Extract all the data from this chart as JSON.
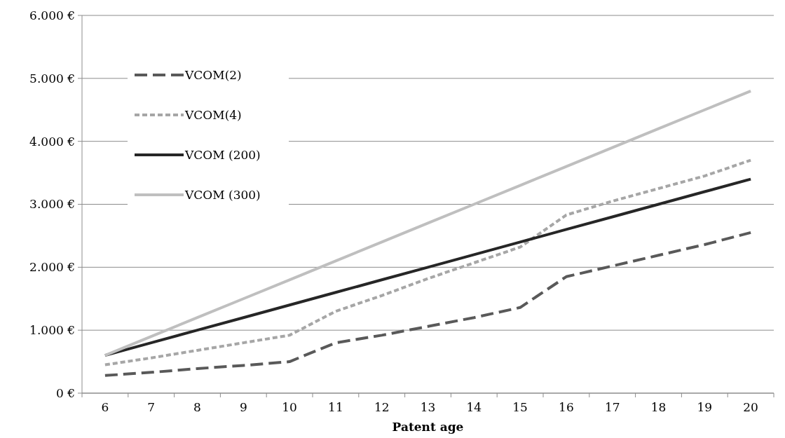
{
  "chart_data": {
    "type": "line",
    "xlabel": "Patent age",
    "categories": [
      "6",
      "7",
      "8",
      "9",
      "10",
      "11",
      "12",
      "13",
      "14",
      "15",
      "16",
      "17",
      "18",
      "19",
      "20"
    ],
    "series": [
      {
        "name": "VCOM(2)",
        "color": "#595959",
        "line_style": "dashed",
        "values": [
          280,
          330,
          390,
          440,
          500,
          800,
          920,
          1060,
          1200,
          1360,
          1850,
          2020,
          2190,
          2360,
          2550
        ]
      },
      {
        "name": "VCOM(4)",
        "color": "#a6a6a6",
        "line_style": "dotted",
        "values": [
          450,
          560,
          680,
          800,
          920,
          1300,
          1550,
          1820,
          2070,
          2320,
          2830,
          3050,
          3250,
          3450,
          3700
        ]
      },
      {
        "name": "VCOM (200)",
        "color": "#262626",
        "line_style": "solid",
        "values": [
          600,
          800,
          1000,
          1200,
          1400,
          1600,
          1800,
          2000,
          2200,
          2400,
          2600,
          2800,
          3000,
          3200,
          3400
        ]
      },
      {
        "name": "VCOM (300)",
        "color": "#bfbfbf",
        "line_style": "solid",
        "values": [
          600,
          900,
          1200,
          1500,
          1800,
          2100,
          2400,
          2700,
          3000,
          3300,
          3600,
          3900,
          4200,
          4500,
          4800
        ]
      }
    ],
    "ylim": [
      0,
      6000
    ],
    "yticks": [
      {
        "value": 0,
        "label": "0 €"
      },
      {
        "value": 1000,
        "label": "1.000 €"
      },
      {
        "value": 2000,
        "label": "2.000 €"
      },
      {
        "value": 3000,
        "label": "3.000 €"
      },
      {
        "value": 4000,
        "label": "4.000 €"
      },
      {
        "value": 5000,
        "label": "5.000 €"
      },
      {
        "value": 6000,
        "label": "6.000 €"
      }
    ],
    "grid": "y",
    "legend": "top left"
  }
}
